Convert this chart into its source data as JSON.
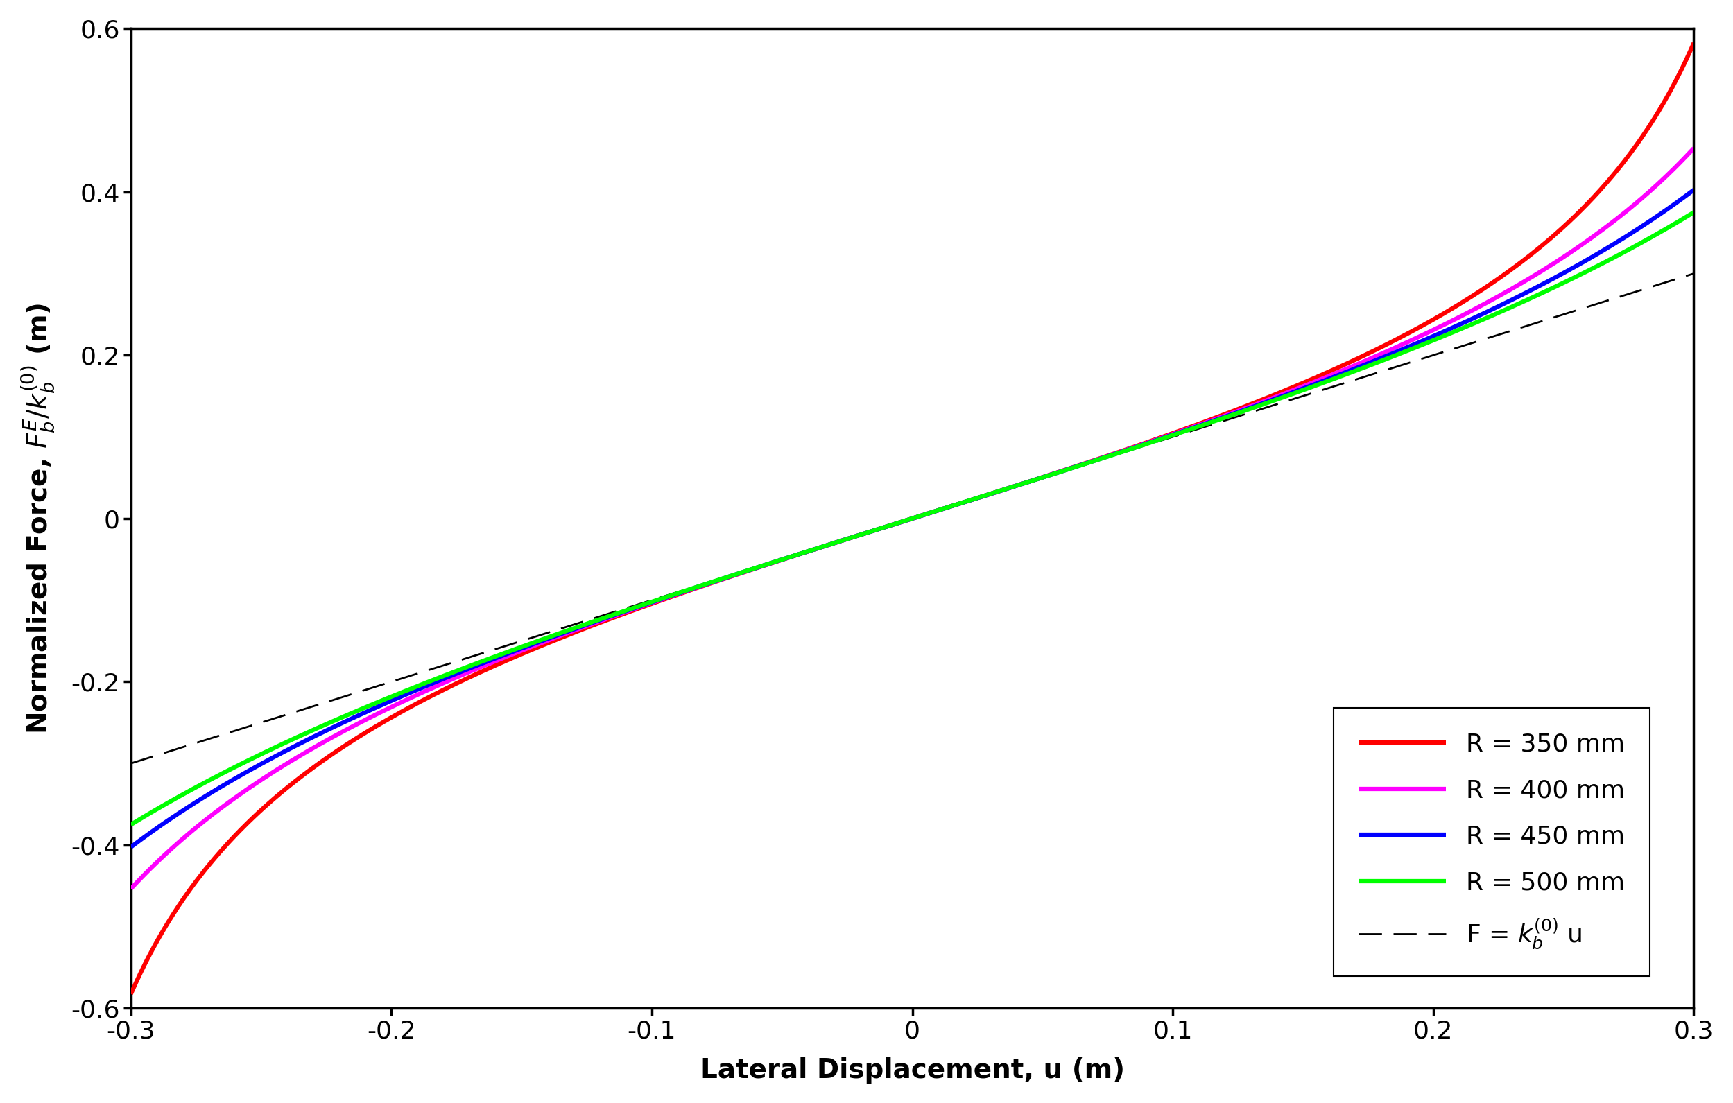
{
  "R_values": [
    0.35,
    0.4,
    0.45,
    0.5
  ],
  "colors": [
    "#ff0000",
    "#ff00ff",
    "#0000ff",
    "#00ff00"
  ],
  "linewidths": [
    4.5,
    4.5,
    4.5,
    4.5
  ],
  "labels": [
    "R = 350 mm",
    "R = 400 mm",
    "R = 450 mm",
    "R = 500 mm"
  ],
  "dashed_label": "F = $k_b^{(0)}$ u",
  "xlim": [
    -0.3,
    0.3
  ],
  "ylim": [
    -0.6,
    0.6
  ],
  "xlabel": "Lateral Displacement, u (m)",
  "ylabel": "Normalized Force, $F_b^E/k_b^{(0)}$ (m)",
  "xticks": [
    -0.3,
    -0.2,
    -0.1,
    0.0,
    0.1,
    0.2,
    0.3
  ],
  "yticks": [
    -0.6,
    -0.4,
    -0.2,
    0.0,
    0.2,
    0.4,
    0.6
  ],
  "background_color": "#ffffff",
  "n_points": 1000,
  "axis_fontsize": 28,
  "tick_fontsize": 26,
  "legend_fontsize": 26,
  "dash_linewidth": 2.0,
  "dashes_on": 12,
  "dashes_off": 6
}
